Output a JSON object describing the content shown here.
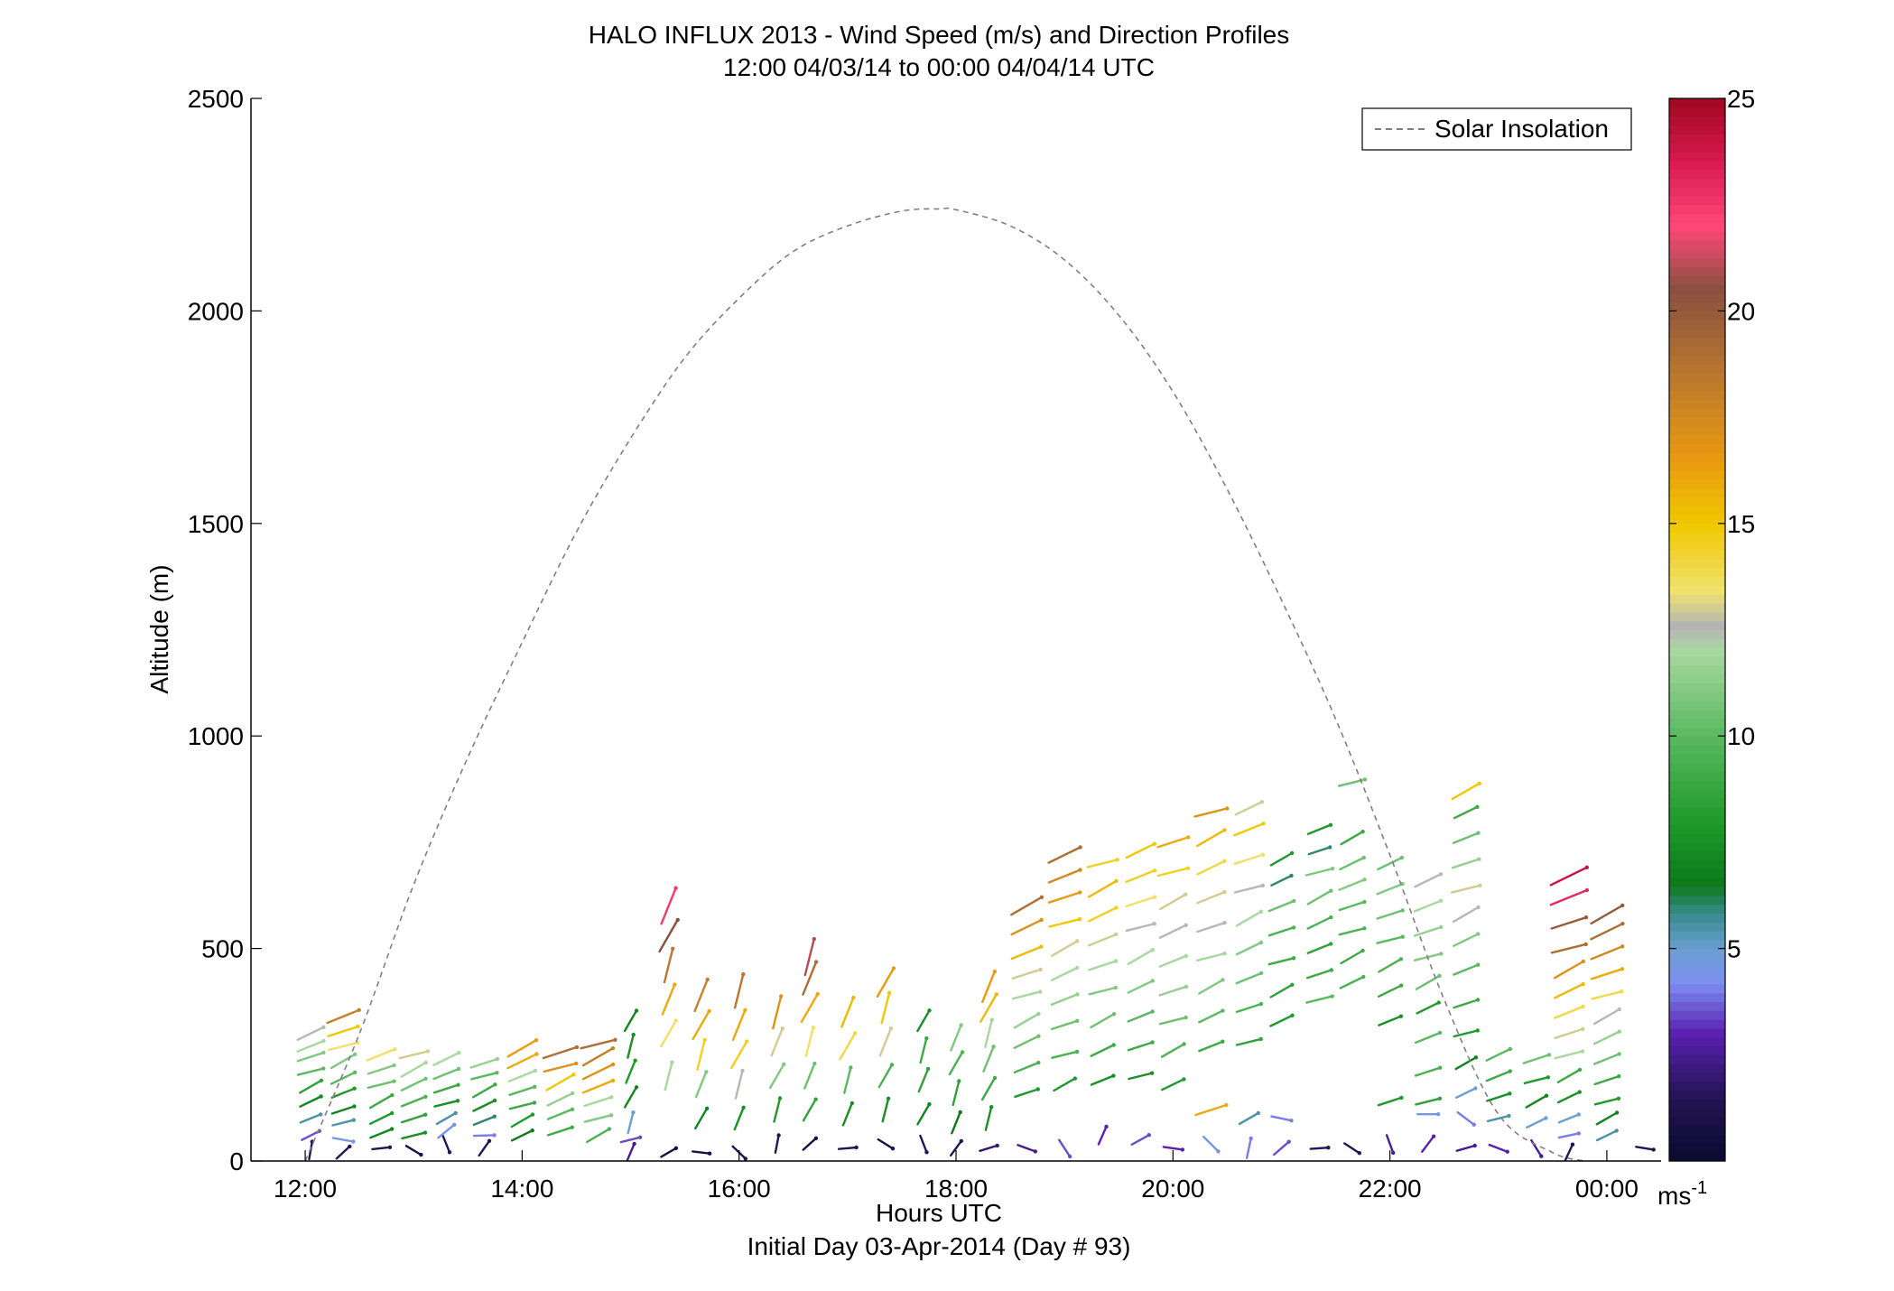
{
  "chart_data": {
    "type": "line",
    "title": "HALO INFLUX 2013 - Wind Speed (m/s) and Direction Profiles",
    "subtitle": "12:00 04/03/14 to 00:00 04/04/14  UTC",
    "xlabel": "Hours UTC",
    "xlabel2": "Initial Day 03-Apr-2014 (Day # 93)",
    "ylabel": "Altitude (m)",
    "xlim": [
      11.5,
      24.5
    ],
    "ylim": [
      0,
      2500
    ],
    "x_ticks": [
      12,
      14,
      16,
      18,
      20,
      22,
      24
    ],
    "x_tick_labels": [
      "12:00",
      "14:00",
      "16:00",
      "18:00",
      "20:00",
      "22:00",
      "00:00"
    ],
    "y_ticks": [
      0,
      500,
      1000,
      1500,
      2000,
      2500
    ],
    "y_tick_labels": [
      "0",
      "500",
      "1000",
      "1500",
      "2000",
      "2500"
    ],
    "legend": {
      "entry": "Solar Insolation",
      "placement": "top-right"
    },
    "colorbar": {
      "range": [
        0,
        25
      ],
      "ticks": [
        5,
        10,
        15,
        20,
        25
      ],
      "tick_labels": [
        "5",
        "10",
        "15",
        "20",
        "25"
      ],
      "unit": "ms",
      "unit_exp": "-1"
    },
    "series": [
      {
        "name": "Solar Insolation",
        "style": "dashed",
        "color": "#7f7f7f",
        "x": [
          12.0,
          12.5,
          13.0,
          13.5,
          14.0,
          14.5,
          15.0,
          15.5,
          16.0,
          16.5,
          17.0,
          17.5,
          17.85,
          18.0,
          18.5,
          19.0,
          19.5,
          20.0,
          20.5,
          21.0,
          21.5,
          22.0,
          22.5,
          23.0,
          23.5,
          23.8
        ],
        "y": [
          0,
          300,
          650,
          950,
          1220,
          1480,
          1700,
          1890,
          2030,
          2140,
          2200,
          2235,
          2240,
          2238,
          2200,
          2120,
          1990,
          1810,
          1580,
          1320,
          1040,
          720,
          380,
          110,
          20,
          0
        ]
      }
    ],
    "wind_profiles": [
      {
        "t": 12.05,
        "alts": [
          25,
          60,
          100,
          140,
          175,
          210,
          245,
          270,
          300
        ],
        "speeds": [
          1.5,
          3.5,
          5.5,
          7.0,
          8.5,
          10.0,
          11.0,
          12.0,
          12.5
        ]
      },
      {
        "t": 12.35,
        "alts": [
          20,
          50,
          90,
          120,
          160,
          195,
          235,
          270,
          305,
          340
        ],
        "speeds": [
          1.5,
          4.5,
          5.5,
          7.0,
          8.0,
          10.0,
          11.0,
          13.5,
          15.0,
          18.0
        ]
      },
      {
        "t": 12.7,
        "alts": [
          30,
          65,
          100,
          140,
          180,
          215,
          250
        ],
        "speeds": [
          1.5,
          7.0,
          8.0,
          9.0,
          10.5,
          11.0,
          13.5
        ]
      },
      {
        "t": 13.0,
        "alts": [
          25,
          60,
          100,
          140,
          180,
          215,
          250
        ],
        "speeds": [
          1.0,
          7.5,
          8.5,
          9.5,
          10.5,
          12.0,
          13.0
        ]
      },
      {
        "t": 13.3,
        "alts": [
          40,
          70,
          100,
          135,
          170,
          205,
          240
        ],
        "speeds": [
          1.5,
          4.5,
          5.5,
          7.5,
          9.0,
          10.5,
          12.0
        ]
      },
      {
        "t": 13.65,
        "alts": [
          30,
          60,
          95,
          130,
          165,
          200,
          230
        ],
        "speeds": [
          1.5,
          4.0,
          6.0,
          7.5,
          9.0,
          10.0,
          11.5
        ]
      },
      {
        "t": 14.0,
        "alts": [
          60,
          95,
          130,
          165,
          200,
          235,
          265
        ],
        "speeds": [
          6.5,
          8.0,
          9.0,
          10.0,
          12.0,
          16.0,
          16.5
        ]
      },
      {
        "t": 14.35,
        "alts": [
          70,
          110,
          145,
          185,
          220,
          255
        ],
        "speeds": [
          9.0,
          10.0,
          11.5,
          15.0,
          17.0,
          19.0
        ]
      },
      {
        "t": 14.7,
        "alts": [
          60,
          100,
          140,
          175,
          210,
          245,
          275
        ],
        "speeds": [
          9.5,
          11.0,
          12.0,
          16.0,
          17.0,
          18.0,
          19.0
        ]
      },
      {
        "t": 15.0,
        "alts": [
          20,
          50,
          90,
          150,
          210,
          270,
          330
        ],
        "speeds": [
          2.5,
          3.5,
          5.0,
          7.0,
          8.0,
          7.5,
          7.0
        ]
      },
      {
        "t": 15.35,
        "alts": [
          20,
          200,
          300,
          380,
          460,
          530,
          600
        ],
        "speeds": [
          1.0,
          12.0,
          13.5,
          16.0,
          18.5,
          20.5,
          22.5
        ]
      },
      {
        "t": 15.65,
        "alts": [
          20,
          100,
          180,
          250,
          320,
          390
        ],
        "speeds": [
          1.0,
          7.0,
          11.0,
          14.5,
          16.0,
          18.0
        ]
      },
      {
        "t": 16.0,
        "alts": [
          20,
          100,
          180,
          250,
          320,
          400
        ],
        "speeds": [
          1.5,
          7.5,
          12.5,
          14.5,
          16.0,
          18.5
        ]
      },
      {
        "t": 16.35,
        "alts": [
          40,
          120,
          200,
          280,
          350
        ],
        "speeds": [
          1.5,
          8.0,
          11.0,
          13.0,
          17.0
        ]
      },
      {
        "t": 16.65,
        "alts": [
          40,
          120,
          200,
          280,
          360,
          430,
          480
        ],
        "speeds": [
          1.0,
          8.5,
          10.5,
          13.5,
          16.0,
          19.0,
          21.0
        ]
      },
      {
        "t": 17.0,
        "alts": [
          30,
          110,
          190,
          270,
          350
        ],
        "speeds": [
          1.5,
          7.5,
          10.0,
          14.0,
          15.5
        ]
      },
      {
        "t": 17.35,
        "alts": [
          40,
          120,
          200,
          280,
          360,
          420
        ],
        "speeds": [
          1.0,
          7.5,
          9.5,
          13.0,
          15.0,
          16.5
        ]
      },
      {
        "t": 17.7,
        "alts": [
          40,
          110,
          190,
          260,
          330
        ],
        "speeds": [
          1.5,
          7.0,
          8.5,
          9.0,
          7.5
        ]
      },
      {
        "t": 18.0,
        "alts": [
          30,
          90,
          160,
          230,
          290
        ],
        "speeds": [
          1.5,
          6.5,
          8.5,
          9.5,
          11.0
        ]
      },
      {
        "t": 18.3,
        "alts": [
          30,
          100,
          170,
          240,
          300,
          360,
          410
        ],
        "speeds": [
          2.0,
          7.5,
          9.0,
          10.5,
          12.0,
          15.5,
          16.5
        ]
      },
      {
        "t": 18.65,
        "alts": [
          30,
          160,
          220,
          280,
          330,
          390,
          440,
          490,
          550,
          600
        ],
        "speeds": [
          2.5,
          8.0,
          9.5,
          10.5,
          11.5,
          12.0,
          13.0,
          15.5,
          17.0,
          19.0
        ]
      },
      {
        "t": 19.0,
        "alts": [
          30,
          180,
          250,
          320,
          380,
          440,
          500,
          560,
          620,
          670,
          720
        ],
        "speeds": [
          3.5,
          8.0,
          9.5,
          10.5,
          11.5,
          12.0,
          13.0,
          15.0,
          16.5,
          17.5,
          19.0
        ]
      },
      {
        "t": 19.35,
        "alts": [
          60,
          190,
          260,
          330,
          400,
          460,
          520,
          580,
          640,
          700
        ],
        "speeds": [
          3.0,
          7.5,
          9.0,
          10.5,
          11.0,
          12.0,
          13.0,
          14.5,
          15.5,
          14.5
        ]
      },
      {
        "t": 19.7,
        "alts": [
          50,
          200,
          270,
          340,
          410,
          480,
          550,
          610,
          670,
          730
        ],
        "speeds": [
          3.5,
          7.5,
          9.0,
          10.0,
          11.0,
          12.0,
          12.5,
          13.5,
          14.5,
          15.0
        ]
      },
      {
        "t": 20.0,
        "alts": [
          30,
          180,
          260,
          330,
          400,
          470,
          540,
          610,
          680,
          750
        ],
        "speeds": [
          3.0,
          8.0,
          9.5,
          10.5,
          11.5,
          12.0,
          12.5,
          13.0,
          14.5,
          16.0
        ]
      },
      {
        "t": 20.35,
        "alts": [
          40,
          120,
          270,
          340,
          410,
          480,
          550,
          620,
          690,
          760,
          820
        ],
        "speeds": [
          4.5,
          16.0,
          9.0,
          10.0,
          11.0,
          12.0,
          12.5,
          13.0,
          14.0,
          15.5,
          17.0
        ]
      },
      {
        "t": 20.7,
        "alts": [
          30,
          100,
          280,
          360,
          430,
          500,
          570,
          640,
          710,
          780,
          830
        ],
        "speeds": [
          4.0,
          5.5,
          8.5,
          9.5,
          10.5,
          11.0,
          12.0,
          12.5,
          13.5,
          15.0,
          13.0
        ]
      },
      {
        "t": 21.0,
        "alts": [
          30,
          100,
          330,
          400,
          470,
          540,
          600,
          660,
          710
        ],
        "speeds": [
          3.5,
          4.0,
          8.0,
          8.5,
          9.0,
          9.5,
          10.5,
          6.0,
          8.0
        ]
      },
      {
        "t": 21.35,
        "alts": [
          30,
          380,
          440,
          500,
          560,
          620,
          680,
          730,
          780
        ],
        "speeds": [
          1.5,
          10.0,
          9.0,
          8.5,
          9.5,
          10.5,
          11.0,
          6.0,
          8.0
        ]
      },
      {
        "t": 21.65,
        "alts": [
          30,
          420,
          480,
          540,
          600,
          650,
          700,
          760,
          890
        ],
        "speeds": [
          1.5,
          9.5,
          9.0,
          9.5,
          10.0,
          11.0,
          10.5,
          9.0,
          10.5
        ]
      },
      {
        "t": 22.0,
        "alts": [
          40,
          140,
          330,
          400,
          460,
          520,
          580,
          640,
          700
        ],
        "speeds": [
          2.5,
          8.0,
          7.5,
          9.0,
          9.5,
          10.0,
          10.5,
          11.0,
          10.5
        ]
      },
      {
        "t": 22.35,
        "alts": [
          40,
          110,
          140,
          210,
          290,
          360,
          420,
          480,
          540,
          600,
          660
        ],
        "speeds": [
          3.0,
          4.5,
          8.5,
          9.5,
          10.0,
          8.0,
          10.5,
          11.0,
          11.5,
          12.0,
          12.5
        ]
      },
      {
        "t": 22.7,
        "alts": [
          30,
          100,
          160,
          230,
          300,
          370,
          450,
          520,
          580,
          640,
          700,
          760,
          820,
          870
        ],
        "speeds": [
          2.5,
          4.0,
          5.0,
          7.0,
          8.0,
          9.0,
          10.0,
          11.0,
          12.5,
          13.0,
          11.5,
          10.5,
          9.0,
          15.0
        ]
      },
      {
        "t": 23.0,
        "alts": [
          30,
          100,
          150,
          200,
          250
        ],
        "speeds": [
          3.0,
          5.5,
          7.5,
          9.0,
          10.0
        ]
      },
      {
        "t": 23.35,
        "alts": [
          30,
          90,
          140,
          190,
          240
        ],
        "speeds": [
          2.5,
          5.0,
          7.0,
          8.0,
          10.5
        ]
      },
      {
        "t": 23.65,
        "alts": [
          20,
          60,
          100,
          150,
          200,
          250,
          300,
          350,
          400,
          450,
          500,
          560,
          620,
          670
        ],
        "speeds": [
          1.5,
          4.0,
          5.0,
          7.5,
          9.0,
          12.0,
          13.0,
          14.0,
          15.5,
          17.0,
          19.0,
          20.0,
          23.0,
          24.0
        ]
      },
      {
        "t": 24.0,
        "alts": [
          60,
          100,
          140,
          190,
          240,
          290,
          340,
          390,
          440,
          490,
          540,
          580
        ],
        "speeds": [
          5.5,
          7.0,
          8.0,
          9.0,
          10.5,
          11.5,
          12.5,
          14.0,
          16.0,
          17.5,
          19.0,
          20.0
        ]
      },
      {
        "t": 24.35,
        "alts": [
          30
        ],
        "speeds": [
          1.5
        ]
      }
    ]
  }
}
